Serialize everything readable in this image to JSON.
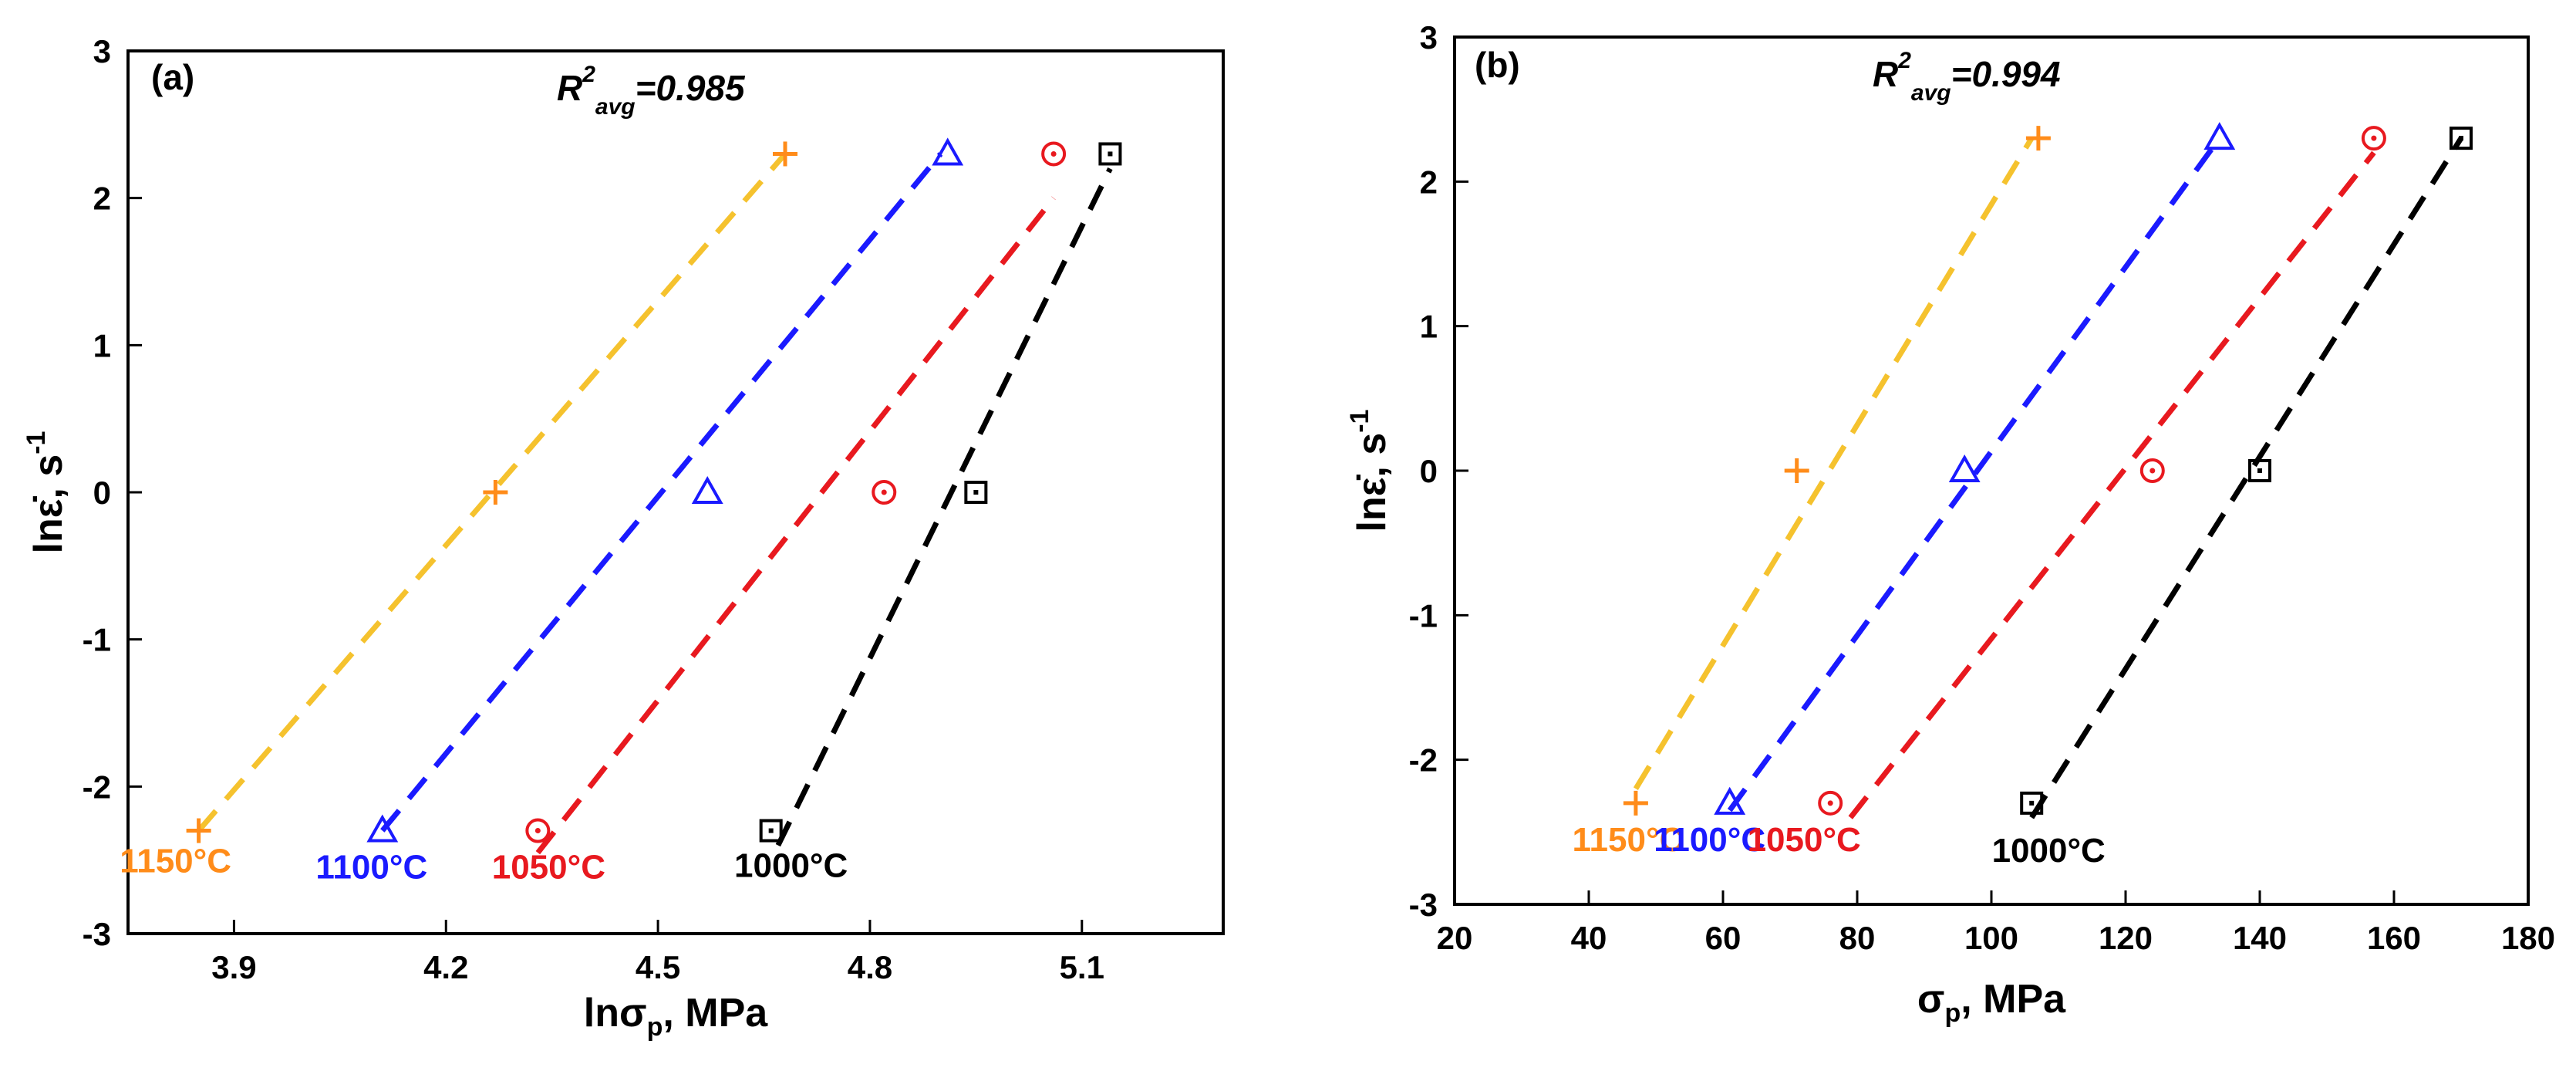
{
  "chart_data": [
    {
      "type": "scatter",
      "panel_label": "(a)",
      "annotation": {
        "base": "R",
        "sup": "2",
        "sub": "avg",
        "value": "=0.985"
      },
      "xlabel": {
        "main": "lnσ",
        "sub": "p",
        "unit": ", MPa"
      },
      "ylabel": {
        "main": "lnε̇, s",
        "sup": "-1"
      },
      "xlim": [
        3.75,
        5.3
      ],
      "ylim": [
        -3,
        3
      ],
      "xticks": [
        "3.9",
        "4.2",
        "4.5",
        "4.8",
        "5.1"
      ],
      "yticks": [
        "-3",
        "-2",
        "-1",
        "0",
        "1",
        "2",
        "3"
      ],
      "series": [
        {
          "name": "1150°C",
          "label": "1150°C",
          "marker": "plus",
          "color": "#ff8c1a",
          "line_color": "#f5c22e",
          "x": [
            3.85,
            4.27,
            4.68
          ],
          "y": [
            -2.3,
            0,
            2.3
          ],
          "fit": {
            "x": [
              3.85,
              4.68
            ],
            "y": [
              -2.3,
              2.3
            ]
          }
        },
        {
          "name": "1100°C",
          "label": "1100°C",
          "marker": "triangle",
          "color": "#1a1aff",
          "line_color": "#1a1aff",
          "x": [
            4.11,
            4.57,
            4.91
          ],
          "y": [
            -2.3,
            0,
            2.3
          ],
          "fit": {
            "x": [
              4.11,
              4.9
            ],
            "y": [
              -2.3,
              2.3
            ]
          }
        },
        {
          "name": "1050°C",
          "label": "1050°C",
          "marker": "circle",
          "color": "#e8191f",
          "line_color": "#e8191f",
          "x": [
            4.33,
            4.82,
            5.06
          ],
          "y": [
            -2.3,
            0,
            2.3
          ],
          "fit": {
            "x": [
              4.33,
              5.06
            ],
            "y": [
              -2.45,
              2.0
            ]
          }
        },
        {
          "name": "1000°C",
          "label": "1000°C",
          "marker": "square",
          "color": "#000000",
          "line_color": "#000000",
          "x": [
            4.66,
            4.95,
            5.14
          ],
          "y": [
            -2.3,
            0,
            2.3
          ],
          "fit": {
            "x": [
              4.67,
              5.14
            ],
            "y": [
              -2.4,
              2.2
            ]
          }
        }
      ]
    },
    {
      "type": "scatter",
      "panel_label": "(b)",
      "annotation": {
        "base": "R",
        "sup": "2",
        "sub": "avg",
        "value": "=0.994"
      },
      "xlabel": {
        "main": "σ",
        "sub": "p",
        "unit": ", MPa"
      },
      "ylabel": {
        "main": "lnε̇, s",
        "sup": "-1"
      },
      "xlim": [
        20,
        180
      ],
      "ylim": [
        -3,
        3
      ],
      "xticks": [
        "20",
        "40",
        "60",
        "80",
        "100",
        "120",
        "140",
        "160",
        "180"
      ],
      "yticks": [
        "-3",
        "-2",
        "-1",
        "0",
        "1",
        "2",
        "3"
      ],
      "series": [
        {
          "name": "1150°C",
          "label": "1150°C",
          "marker": "plus",
          "color": "#ff8c1a",
          "line_color": "#f5c22e",
          "x": [
            47,
            71,
            107
          ],
          "y": [
            -2.3,
            0,
            2.3
          ],
          "fit": {
            "x": [
              47,
              106
            ],
            "y": [
              -2.2,
              2.3
            ]
          }
        },
        {
          "name": "1100°C",
          "label": "1100°C",
          "marker": "triangle",
          "color": "#1a1aff",
          "line_color": "#1a1aff",
          "x": [
            61,
            96,
            134
          ],
          "y": [
            -2.3,
            0,
            2.3
          ],
          "fit": {
            "x": [
              61,
              134
            ],
            "y": [
              -2.35,
              2.3
            ]
          }
        },
        {
          "name": "1050°C",
          "label": "1050°C",
          "marker": "circle",
          "color": "#e8191f",
          "line_color": "#e8191f",
          "x": [
            76,
            124,
            157
          ],
          "y": [
            -2.3,
            0,
            2.3
          ],
          "fit": {
            "x": [
              79,
              157
            ],
            "y": [
              -2.4,
              2.2
            ]
          }
        },
        {
          "name": "1000°C",
          "label": "1000°C",
          "marker": "square",
          "color": "#000000",
          "line_color": "#000000",
          "x": [
            106,
            140,
            170
          ],
          "y": [
            -2.3,
            0,
            2.3
          ],
          "fit": {
            "x": [
              106,
              170
            ],
            "y": [
              -2.4,
              2.3
            ]
          }
        }
      ]
    }
  ]
}
